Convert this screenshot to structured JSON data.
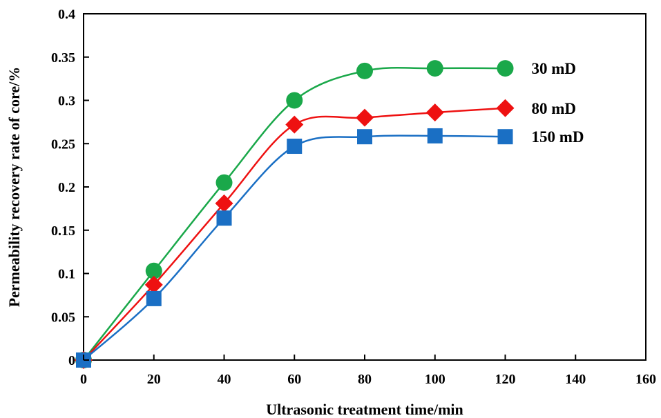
{
  "chart_data": {
    "type": "line",
    "title": "",
    "xlabel": "Ultrasonic treatment time/min",
    "ylabel": "Permeability recovery rate of core/%",
    "xlim": [
      0,
      160
    ],
    "ylim": [
      0,
      0.4
    ],
    "xticks": [
      0,
      20,
      40,
      60,
      80,
      100,
      120,
      140,
      160
    ],
    "xtick_labels": [
      "0",
      "20",
      "40",
      "60",
      "80",
      "100",
      "120",
      "140",
      "160"
    ],
    "yticks": [
      0,
      0.05,
      0.1,
      0.15,
      0.2,
      0.25,
      0.3,
      0.35,
      0.4
    ],
    "ytick_labels": [
      "0",
      "0.05",
      "0.1",
      "0.15",
      "0.2",
      "0.25",
      "0.3",
      "0.35",
      "0.4"
    ],
    "grid": false,
    "legend": "inline labels at right end of each series",
    "x": [
      0,
      20,
      40,
      60,
      80,
      100,
      120
    ],
    "series": [
      {
        "name": "30 mD",
        "color": "#1aa84a",
        "marker": "circle",
        "values": [
          0,
          0.103,
          0.205,
          0.3,
          0.334,
          0.337,
          0.337
        ]
      },
      {
        "name": "80 mD",
        "color": "#ee1111",
        "marker": "diamond",
        "values": [
          0,
          0.087,
          0.181,
          0.272,
          0.28,
          0.286,
          0.291
        ]
      },
      {
        "name": "150 mD",
        "color": "#1a6fc4",
        "marker": "square",
        "values": [
          0,
          0.071,
          0.164,
          0.247,
          0.258,
          0.259,
          0.258
        ]
      }
    ]
  }
}
